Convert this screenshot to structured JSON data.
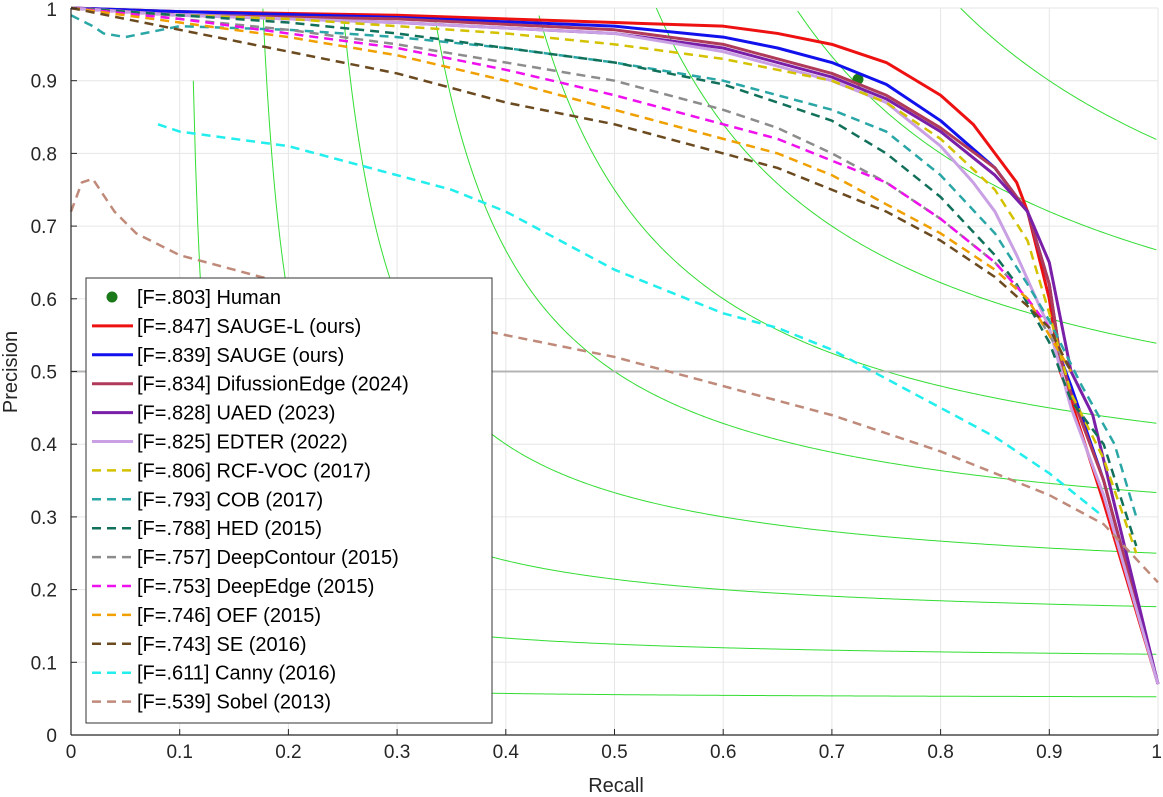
{
  "chart_data": {
    "type": "line",
    "title": "",
    "xlabel": "Recall",
    "ylabel": "Precision",
    "xlim": [
      0,
      1
    ],
    "ylim": [
      0,
      1
    ],
    "grid": true,
    "xticks": [
      "0",
      "0.1",
      "0.2",
      "0.3",
      "0.4",
      "0.5",
      "0.6",
      "0.7",
      "0.8",
      "0.9",
      "1"
    ],
    "yticks": [
      "0",
      "0.1",
      "0.2",
      "0.3",
      "0.4",
      "0.5",
      "0.6",
      "0.7",
      "0.8",
      "0.9",
      "1"
    ],
    "legend_position": "bottom-left",
    "reference_line": {
      "y": 0.5,
      "color": "#b4b4b4"
    },
    "iso_f_lines": [
      0.1,
      0.2,
      0.3,
      0.4,
      0.5,
      0.6,
      0.7,
      0.8,
      0.9
    ],
    "iso_f_color": "#33dd33",
    "series": [
      {
        "name": "[F=.803] Human",
        "kind": "point",
        "color": "#1a7a1a",
        "x": [
          0.724
        ],
        "y": [
          0.902
        ]
      },
      {
        "name": "[F=.847] SAUGE-L (ours)",
        "kind": "solid",
        "color": "#ee1111",
        "x": [
          0.0,
          0.1,
          0.3,
          0.5,
          0.6,
          0.65,
          0.7,
          0.75,
          0.8,
          0.83,
          0.85,
          0.87,
          0.88,
          0.9,
          0.91,
          0.92,
          0.95,
          1.0
        ],
        "y": [
          1.0,
          0.995,
          0.99,
          0.98,
          0.975,
          0.965,
          0.95,
          0.925,
          0.88,
          0.84,
          0.8,
          0.76,
          0.72,
          0.6,
          0.5,
          0.46,
          0.32,
          0.07
        ]
      },
      {
        "name": "[F=.839] SAUGE (ours)",
        "kind": "solid",
        "color": "#1111ee",
        "x": [
          0.0,
          0.1,
          0.3,
          0.5,
          0.6,
          0.65,
          0.7,
          0.75,
          0.8,
          0.85,
          0.88,
          0.9,
          0.91,
          0.92,
          0.95,
          1.0
        ],
        "y": [
          1.0,
          0.995,
          0.987,
          0.975,
          0.96,
          0.945,
          0.925,
          0.895,
          0.845,
          0.78,
          0.72,
          0.62,
          0.52,
          0.48,
          0.35,
          0.07
        ]
      },
      {
        "name": "[F=.834] DifussionEdge (2024)",
        "kind": "solid",
        "color": "#b03a5a",
        "x": [
          0.0,
          0.1,
          0.3,
          0.5,
          0.6,
          0.7,
          0.75,
          0.8,
          0.85,
          0.88,
          0.9,
          0.91,
          0.92,
          0.95,
          1.0
        ],
        "y": [
          1.0,
          0.99,
          0.985,
          0.97,
          0.95,
          0.91,
          0.88,
          0.835,
          0.78,
          0.72,
          0.62,
          0.52,
          0.47,
          0.35,
          0.07
        ]
      },
      {
        "name": "[F=.828] UAED (2023)",
        "kind": "solid",
        "color": "#7a1fa8",
        "x": [
          0.0,
          0.1,
          0.3,
          0.5,
          0.6,
          0.7,
          0.75,
          0.8,
          0.85,
          0.88,
          0.9,
          0.92,
          0.94,
          1.0
        ],
        "y": [
          1.0,
          0.99,
          0.98,
          0.965,
          0.945,
          0.905,
          0.875,
          0.83,
          0.77,
          0.72,
          0.65,
          0.5,
          0.44,
          0.07
        ]
      },
      {
        "name": "[F=.825] EDTER (2022)",
        "kind": "solid",
        "color": "#c9a0e4",
        "x": [
          0.0,
          0.1,
          0.3,
          0.5,
          0.6,
          0.7,
          0.75,
          0.8,
          0.83,
          0.85,
          0.87,
          0.9,
          0.92,
          0.95,
          1.0
        ],
        "y": [
          1.0,
          0.99,
          0.98,
          0.965,
          0.94,
          0.9,
          0.87,
          0.81,
          0.76,
          0.72,
          0.66,
          0.56,
          0.45,
          0.33,
          0.07
        ]
      },
      {
        "name": "[F=.806] RCF-VOC (2017)",
        "kind": "dashed",
        "color": "#d4c200",
        "x": [
          0.0,
          0.1,
          0.2,
          0.3,
          0.4,
          0.5,
          0.6,
          0.7,
          0.75,
          0.8,
          0.85,
          0.88,
          0.9,
          0.92,
          0.95,
          0.98
        ],
        "y": [
          1.0,
          0.99,
          0.985,
          0.975,
          0.965,
          0.95,
          0.93,
          0.9,
          0.87,
          0.82,
          0.75,
          0.68,
          0.58,
          0.47,
          0.38,
          0.25
        ]
      },
      {
        "name": "[F=.793] COB (2017)",
        "kind": "dashed",
        "color": "#2aa6a6",
        "x": [
          0.0,
          0.02,
          0.03,
          0.05,
          0.1,
          0.2,
          0.3,
          0.4,
          0.5,
          0.6,
          0.7,
          0.75,
          0.8,
          0.85,
          0.88,
          0.9,
          0.93,
          0.96,
          0.98
        ],
        "y": [
          0.99,
          0.975,
          0.965,
          0.96,
          0.975,
          0.97,
          0.96,
          0.945,
          0.925,
          0.9,
          0.86,
          0.83,
          0.77,
          0.69,
          0.62,
          0.57,
          0.48,
          0.4,
          0.3
        ]
      },
      {
        "name": "[F=.788] HED (2015)",
        "kind": "dashed",
        "color": "#11705a",
        "x": [
          0.0,
          0.1,
          0.2,
          0.3,
          0.4,
          0.5,
          0.6,
          0.7,
          0.75,
          0.8,
          0.85,
          0.87,
          0.9,
          0.92,
          0.95,
          0.98
        ],
        "y": [
          1.0,
          0.99,
          0.98,
          0.965,
          0.945,
          0.925,
          0.895,
          0.845,
          0.8,
          0.74,
          0.66,
          0.62,
          0.54,
          0.46,
          0.4,
          0.26
        ]
      },
      {
        "name": "[F=.757] DeepContour (2015)",
        "kind": "dashed",
        "color": "#8c8c8c",
        "x": [
          0.0,
          0.1,
          0.2,
          0.3,
          0.4,
          0.5,
          0.6,
          0.65,
          0.7,
          0.75,
          0.8,
          0.85,
          0.88,
          0.9,
          0.92
        ],
        "y": [
          1.0,
          0.985,
          0.97,
          0.95,
          0.925,
          0.9,
          0.86,
          0.835,
          0.8,
          0.76,
          0.71,
          0.65,
          0.6,
          0.55,
          0.5
        ]
      },
      {
        "name": "[F=.753] DeepEdge (2015)",
        "kind": "dashed",
        "color": "#ee11ee",
        "x": [
          0.0,
          0.1,
          0.2,
          0.3,
          0.4,
          0.5,
          0.6,
          0.65,
          0.7,
          0.75,
          0.8,
          0.85,
          0.88,
          0.9
        ],
        "y": [
          1.0,
          0.985,
          0.965,
          0.945,
          0.915,
          0.88,
          0.84,
          0.82,
          0.79,
          0.76,
          0.71,
          0.65,
          0.6,
          0.56
        ]
      },
      {
        "name": "[F=.746] OEF (2015)",
        "kind": "dashed",
        "color": "#f0a000",
        "x": [
          0.0,
          0.1,
          0.2,
          0.3,
          0.4,
          0.5,
          0.6,
          0.65,
          0.7,
          0.75,
          0.8,
          0.85,
          0.88,
          0.9,
          0.92
        ],
        "y": [
          1.0,
          0.98,
          0.96,
          0.935,
          0.9,
          0.86,
          0.82,
          0.8,
          0.77,
          0.73,
          0.69,
          0.64,
          0.6,
          0.55,
          0.5
        ]
      },
      {
        "name": "[F=.743] SE (2016)",
        "kind": "dashed",
        "color": "#6b4a1f",
        "x": [
          0.0,
          0.1,
          0.2,
          0.3,
          0.4,
          0.5,
          0.6,
          0.65,
          0.7,
          0.75,
          0.8,
          0.85,
          0.88,
          0.9,
          0.92
        ],
        "y": [
          1.0,
          0.97,
          0.94,
          0.91,
          0.87,
          0.84,
          0.8,
          0.78,
          0.75,
          0.72,
          0.68,
          0.63,
          0.59,
          0.56,
          0.5
        ]
      },
      {
        "name": "[F=.611] Canny (2016)",
        "kind": "dashed",
        "color": "#22eeee",
        "x": [
          0.08,
          0.1,
          0.2,
          0.3,
          0.35,
          0.4,
          0.45,
          0.5,
          0.55,
          0.6,
          0.65,
          0.7,
          0.75,
          0.8,
          0.85,
          0.9,
          0.95
        ],
        "y": [
          0.84,
          0.83,
          0.81,
          0.77,
          0.75,
          0.72,
          0.68,
          0.64,
          0.61,
          0.58,
          0.56,
          0.53,
          0.49,
          0.45,
          0.41,
          0.36,
          0.3
        ]
      },
      {
        "name": "[F=.539] Sobel (2013)",
        "kind": "dashed",
        "color": "#c08a7a",
        "x": [
          0.0,
          0.01,
          0.02,
          0.04,
          0.06,
          0.1,
          0.15,
          0.2,
          0.25,
          0.3,
          0.4,
          0.5,
          0.6,
          0.7,
          0.8,
          0.9,
          0.95,
          1.0
        ],
        "y": [
          0.72,
          0.76,
          0.765,
          0.72,
          0.69,
          0.66,
          0.64,
          0.62,
          0.6,
          0.58,
          0.55,
          0.52,
          0.48,
          0.44,
          0.39,
          0.33,
          0.29,
          0.21
        ]
      }
    ]
  }
}
